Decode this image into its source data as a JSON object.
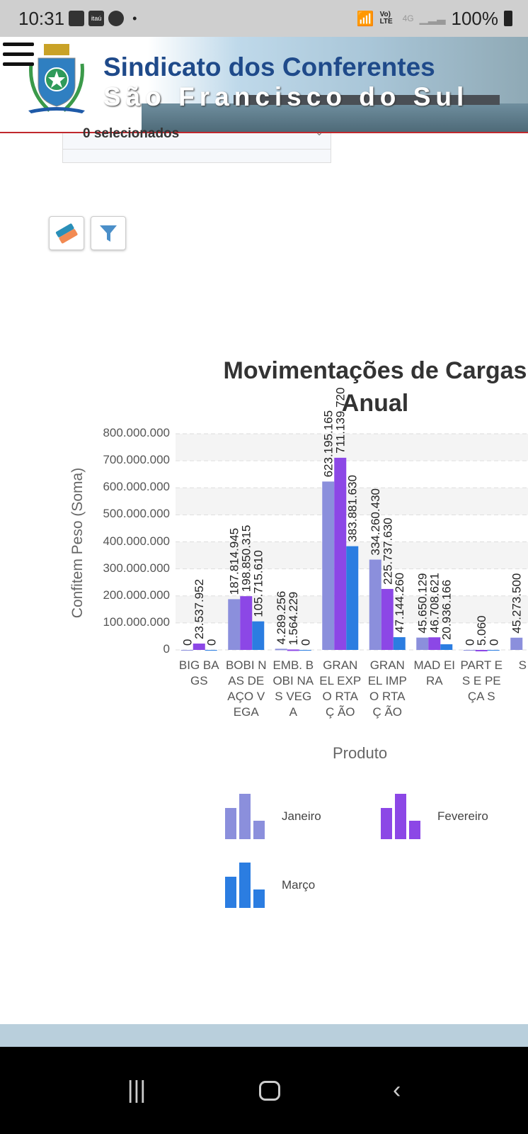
{
  "status_bar": {
    "time": "10:31",
    "battery": "100%",
    "network": "4G",
    "volte": "Vo) LTE",
    "app_icon_label": "itaú"
  },
  "header": {
    "title_line1": "Sindicato dos Conferentes",
    "title_line2": "São Francisco do Sul",
    "menu_icon": "hamburger-icon"
  },
  "filter": {
    "select_value": "0 selecionados"
  },
  "toolbar": {
    "clear_icon": "eraser-icon",
    "filter_icon": "funnel-icon"
  },
  "colors": {
    "janeiro": "#8b8fdc",
    "fevereiro": "#8c47e6",
    "marco": "#2b7de1",
    "header_line": "#c0282d",
    "footer": "#b9cfdc"
  },
  "chart_data": {
    "type": "bar",
    "title_line1": "Movimentações de Cargas",
    "title_line2": "Anual",
    "xlabel": "Produto",
    "ylabel": "Confitem Peso (Soma)",
    "ylim": [
      0,
      800000000
    ],
    "yticks": [
      "0",
      "100.000.000",
      "200.000.000",
      "300.000.000",
      "400.000.000",
      "500.000.000",
      "600.000.000",
      "700.000.000",
      "800.000.000"
    ],
    "categories": [
      "BIG BAGS",
      "BOBI NAS DE AÇO VEGA",
      "EMB. BOBI NAS VEGA",
      "GRAN EL EXPO RTAÇ ÃO",
      "GRAN EL IMPO RTAÇ ÃO",
      "MAD EIRA",
      "PART ES E PEÇA S",
      "S R"
    ],
    "series": [
      {
        "name": "Janeiro",
        "values": [
          0,
          187814945,
          4289256,
          623195165,
          334260430,
          45650129,
          0,
          45273500
        ],
        "labels": [
          "0",
          "187.814.945",
          "4.289.256",
          "623.195.165",
          "334.260.430",
          "45.650.129",
          "0",
          "45.273.500"
        ]
      },
      {
        "name": "Fevereiro",
        "values": [
          23537952,
          198850315,
          1564229,
          711139720,
          225737630,
          46708621,
          5060,
          null
        ],
        "labels": [
          "23.537.952",
          "198.850.315",
          "1.564.229",
          "711.139.720",
          "225.737.630",
          "46.708.621",
          "5.060",
          ""
        ]
      },
      {
        "name": "Março",
        "values": [
          0,
          105715610,
          0,
          383881630,
          47144260,
          20936166,
          0,
          null
        ],
        "labels": [
          "0",
          "105.715.610",
          "0",
          "383.881.630",
          "47.144.260",
          "20.936.166",
          "0",
          ""
        ]
      }
    ],
    "grid": true,
    "legend_position": "bottom"
  }
}
